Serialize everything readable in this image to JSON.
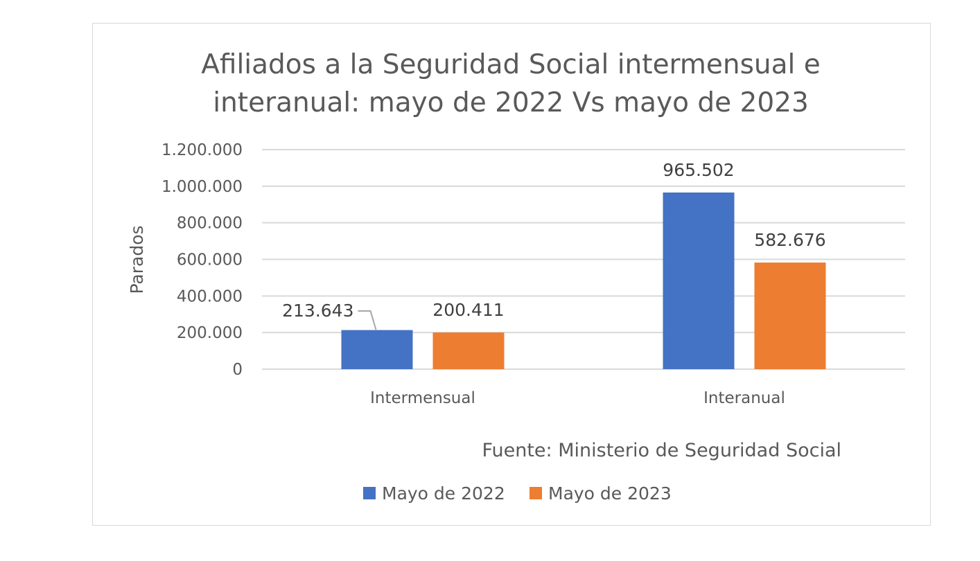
{
  "chart_data": {
    "type": "bar",
    "title_lines": [
      "Afiliados a la Seguridad Social intermensual e",
      "interanual: mayo de 2022 Vs mayo de 2023"
    ],
    "categories": [
      "Intermensual",
      "Interanual"
    ],
    "series": [
      {
        "name": "Mayo de 2022",
        "color": "#4472c4",
        "values": [
          213643,
          965502
        ],
        "labels": [
          "213.643",
          "965.502"
        ]
      },
      {
        "name": "Mayo de 2023",
        "color": "#ed7d31",
        "values": [
          200411,
          582676
        ],
        "labels": [
          "200.411",
          "582.676"
        ]
      }
    ],
    "ylabel": "Parados",
    "xlabel": "",
    "ylim": [
      0,
      1200000
    ],
    "yticks": [
      0,
      200000,
      400000,
      600000,
      800000,
      1000000,
      1200000
    ],
    "ytick_labels": [
      "0",
      "200.000",
      "400.000",
      "600.000",
      "800.000",
      "1.000.000",
      "1.200.000"
    ],
    "grid": true,
    "source_note": "Fuente: Ministerio de Seguridad Social",
    "legend_position": "bottom"
  }
}
